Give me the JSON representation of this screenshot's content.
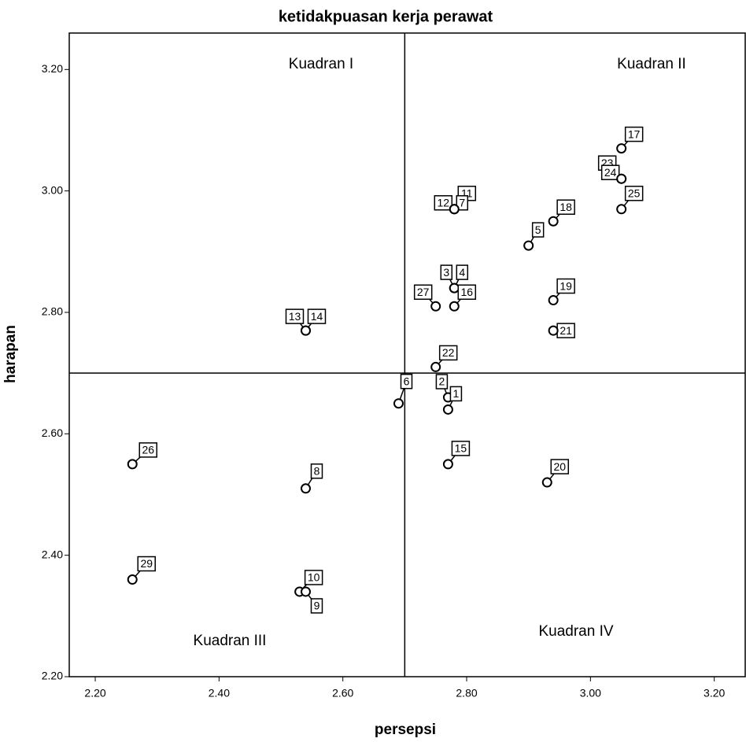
{
  "chart_data": {
    "type": "scatter",
    "title": "ketidakpuasan kerja perawat",
    "x_label": "persepsi",
    "y_label": "harapan",
    "xlim": [
      2.158,
      3.25
    ],
    "ylim": [
      2.2,
      3.26
    ],
    "xticks": [
      {
        "value": 2.2,
        "label": "2.20"
      },
      {
        "value": 2.4,
        "label": "2.40"
      },
      {
        "value": 2.6,
        "label": "2.60"
      },
      {
        "value": 2.8,
        "label": "2.80"
      },
      {
        "value": 3.0,
        "label": "3.00"
      },
      {
        "value": 3.2,
        "label": "3.20"
      }
    ],
    "yticks": [
      {
        "value": 2.2,
        "label": "2.20"
      },
      {
        "value": 2.4,
        "label": "2.40"
      },
      {
        "value": 2.6,
        "label": "2.60"
      },
      {
        "value": 2.8,
        "label": "2.80"
      },
      {
        "value": 3.0,
        "label": "3.00"
      },
      {
        "value": 3.2,
        "label": "3.20"
      }
    ],
    "reference_lines": {
      "x": 2.7,
      "y": 2.7
    },
    "annotations": [
      "Kuadran I",
      "Kuadran II",
      "Kuadran III",
      "Kuadran IV"
    ],
    "points": [
      {
        "label": "17",
        "x": 3.05,
        "y": 3.07
      },
      {
        "label": "23",
        "x": 3.05,
        "y": 3.02
      },
      {
        "label": "24",
        "x": 3.05,
        "y": 3.02
      },
      {
        "label": "25",
        "x": 3.05,
        "y": 2.97
      },
      {
        "label": "18",
        "x": 2.94,
        "y": 2.95
      },
      {
        "label": "5",
        "x": 2.9,
        "y": 2.91
      },
      {
        "label": "11",
        "x": 2.78,
        "y": 2.97
      },
      {
        "label": "12",
        "x": 2.78,
        "y": 2.97
      },
      {
        "label": "7",
        "x": 2.78,
        "y": 2.97
      },
      {
        "label": "3",
        "x": 2.78,
        "y": 2.84
      },
      {
        "label": "4",
        "x": 2.78,
        "y": 2.84
      },
      {
        "label": "16",
        "x": 2.78,
        "y": 2.81
      },
      {
        "label": "27",
        "x": 2.75,
        "y": 2.81
      },
      {
        "label": "19",
        "x": 2.94,
        "y": 2.82
      },
      {
        "label": "21",
        "x": 2.94,
        "y": 2.77
      },
      {
        "label": "13",
        "x": 2.54,
        "y": 2.77
      },
      {
        "label": "14",
        "x": 2.54,
        "y": 2.77
      },
      {
        "label": "22",
        "x": 2.75,
        "y": 2.71
      },
      {
        "label": "2",
        "x": 2.77,
        "y": 2.66
      },
      {
        "label": "1",
        "x": 2.77,
        "y": 2.64
      },
      {
        "label": "6",
        "x": 2.69,
        "y": 2.65
      },
      {
        "label": "26",
        "x": 2.26,
        "y": 2.55
      },
      {
        "label": "8",
        "x": 2.54,
        "y": 2.51
      },
      {
        "label": "15",
        "x": 2.77,
        "y": 2.55
      },
      {
        "label": "20",
        "x": 2.93,
        "y": 2.52
      },
      {
        "label": "29",
        "x": 2.26,
        "y": 2.36
      },
      {
        "label": "10",
        "x": 2.53,
        "y": 2.34
      },
      {
        "label": "9",
        "x": 2.54,
        "y": 2.34
      }
    ]
  }
}
